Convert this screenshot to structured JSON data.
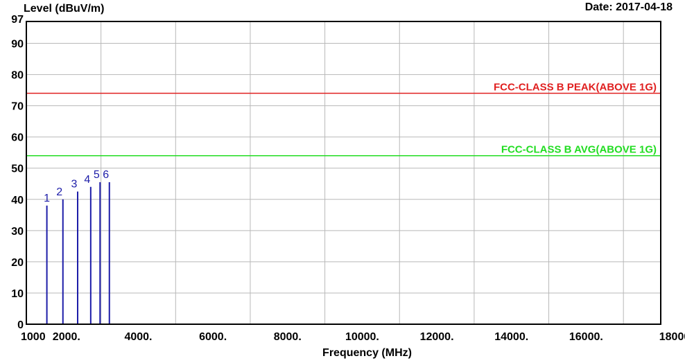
{
  "chart_data": {
    "type": "line",
    "title": "",
    "ylabel": "Level (dBuV/m)",
    "xlabel": "Frequency (MHz)",
    "date_label": "Date: 2017-04-18",
    "xlim": [
      1000,
      18000
    ],
    "ylim": [
      0,
      97
    ],
    "x_ticks": [
      {
        "value": 1000,
        "label": "1000"
      },
      {
        "value": 2000,
        "label": "2000."
      },
      {
        "value": 4000,
        "label": "4000."
      },
      {
        "value": 6000,
        "label": "6000."
      },
      {
        "value": 8000,
        "label": "8000."
      },
      {
        "value": 10000,
        "label": "10000."
      },
      {
        "value": 12000,
        "label": "12000."
      },
      {
        "value": 14000,
        "label": "14000."
      },
      {
        "value": 16000,
        "label": "16000."
      },
      {
        "value": 18000,
        "label": "18000"
      }
    ],
    "x_grid": [
      1000,
      3000,
      5000,
      7000,
      9000,
      11000,
      13000,
      15000,
      17000
    ],
    "y_ticks": [
      {
        "value": 0,
        "label": "0"
      },
      {
        "value": 10,
        "label": "10"
      },
      {
        "value": 20,
        "label": "20"
      },
      {
        "value": 30,
        "label": "30"
      },
      {
        "value": 40,
        "label": "40"
      },
      {
        "value": 50,
        "label": "50"
      },
      {
        "value": 60,
        "label": "60"
      },
      {
        "value": 70,
        "label": "70"
      },
      {
        "value": 80,
        "label": "80"
      },
      {
        "value": 90,
        "label": "90"
      },
      {
        "value": 97,
        "label": "97"
      }
    ],
    "grid": true,
    "limit_lines": [
      {
        "name": "FCC-CLASS B PEAK(ABOVE 1G)",
        "value": 74,
        "color": "#e02020"
      },
      {
        "name": "FCC-CLASS B AVG(ABOVE 1G)",
        "value": 54,
        "color": "#22dd22"
      }
    ],
    "markers": [
      {
        "label": "1",
        "x": 1550,
        "y": 38
      },
      {
        "label": "2",
        "x": 1980,
        "y": 40
      },
      {
        "label": "3",
        "x": 2375,
        "y": 42.5
      },
      {
        "label": "4",
        "x": 2725,
        "y": 44
      },
      {
        "label": "5",
        "x": 2975,
        "y": 45.5
      },
      {
        "label": "6",
        "x": 3225,
        "y": 45.5
      }
    ],
    "marker_color": "#1c1ca8"
  }
}
